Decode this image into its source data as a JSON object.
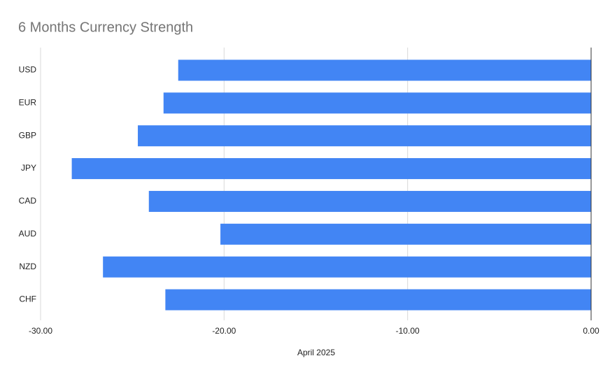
{
  "chart_data": {
    "type": "hbar",
    "title": "6 Months Currency Strength",
    "x_label": "April 2025",
    "categories": [
      "USD",
      "EUR",
      "GBP",
      "JPY",
      "CAD",
      "AUD",
      "NZD",
      "CHF"
    ],
    "values": [
      -22.5,
      -23.3,
      -24.7,
      -28.3,
      -24.1,
      -20.2,
      -26.6,
      -23.2
    ],
    "color": "#4285f4",
    "xlim": [
      -30,
      0
    ],
    "xticks": [
      {
        "value": -30,
        "label": "-30.00"
      },
      {
        "value": -20,
        "label": "-20.00"
      },
      {
        "value": -10,
        "label": "-10.00"
      },
      {
        "value": 0,
        "label": "0.00"
      }
    ],
    "grid": true
  }
}
